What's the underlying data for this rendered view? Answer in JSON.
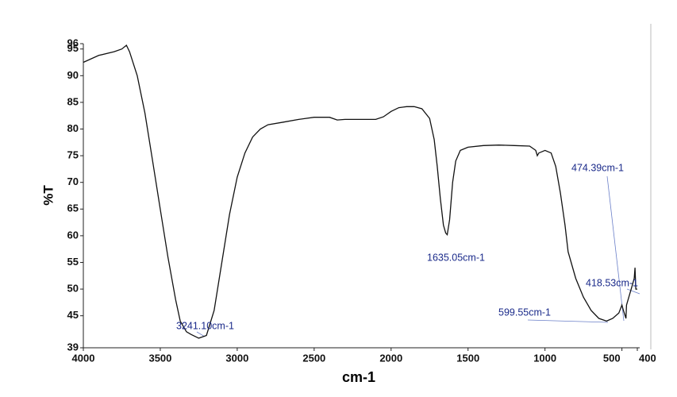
{
  "chart_data": {
    "type": "line",
    "xlabel": "cm-1",
    "ylabel": "%T",
    "color": "#111111",
    "xlim": [
      4000,
      400
    ],
    "ylim": [
      39,
      96
    ],
    "xticks": [
      4000,
      3500,
      3000,
      2500,
      2000,
      1500,
      1000,
      500,
      400
    ],
    "yticks": [
      39,
      45,
      50,
      55,
      60,
      65,
      70,
      75,
      80,
      85,
      90,
      95,
      96
    ],
    "x": [
      4000,
      3900,
      3800,
      3750,
      3720,
      3700,
      3650,
      3600,
      3550,
      3500,
      3450,
      3400,
      3370,
      3330,
      3300,
      3250,
      3200,
      3150,
      3100,
      3050,
      3000,
      2950,
      2900,
      2850,
      2800,
      2700,
      2600,
      2500,
      2400,
      2350,
      2300,
      2200,
      2100,
      2050,
      2000,
      1950,
      1900,
      1850,
      1800,
      1750,
      1720,
      1700,
      1680,
      1660,
      1645,
      1635,
      1620,
      1600,
      1580,
      1550,
      1500,
      1400,
      1300,
      1200,
      1100,
      1060,
      1050,
      1040,
      1000,
      960,
      930,
      900,
      870,
      850,
      800,
      750,
      700,
      650,
      600,
      560,
      520,
      500,
      490,
      474,
      470,
      450,
      430,
      420,
      415,
      410,
      400
    ],
    "values": [
      92.5,
      93.8,
      94.5,
      95.0,
      95.7,
      94.5,
      90,
      83,
      74,
      65,
      56,
      48,
      44,
      42,
      41.5,
      40.8,
      41.3,
      46,
      55,
      64,
      71,
      75.5,
      78.5,
      80,
      80.8,
      81.3,
      81.8,
      82.2,
      82.2,
      81.7,
      81.8,
      81.8,
      81.8,
      82.3,
      83.3,
      84,
      84.2,
      84.2,
      83.8,
      82,
      78,
      73,
      67,
      62,
      60.5,
      60.2,
      63,
      70,
      74,
      76,
      76.6,
      76.9,
      77,
      76.9,
      76.8,
      76,
      75,
      75.5,
      76,
      75.5,
      73,
      68,
      62,
      57,
      52,
      48.5,
      46,
      44.5,
      44,
      44.5,
      45.5,
      47,
      46,
      44.5,
      47,
      49,
      51,
      52,
      54,
      50,
      50
    ],
    "annotations": [
      "3241.10cm-1",
      "1635.05cm-1",
      "474.39cm-1",
      "418.53cm-1",
      "599.55cm-1"
    ]
  }
}
